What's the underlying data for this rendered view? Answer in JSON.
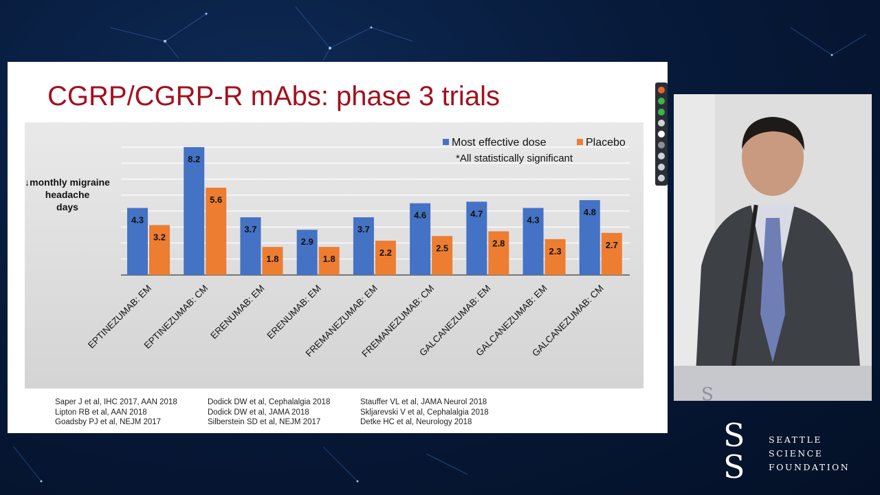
{
  "slide": {
    "title": "CGRP/CGRP-R mAbs: phase 3 trials",
    "references": [
      [
        "Saper J et al, IHC 2017, AAN 2018",
        "Lipton RB et al, AAN 2018",
        "Goadsby PJ et al, NEJM 2017"
      ],
      [
        "Dodick DW et al, Cephalalgia 2018",
        "Dodick DW et al, JAMA 2018",
        "Silberstein SD et al, NEJM 2017"
      ],
      [
        "Stauffer VL et al, JAMA Neurol 2018",
        "Skljarevski V et al, Cephalalgia 2018",
        "Detke HC et al, Neurology 2018"
      ]
    ]
  },
  "chart_data": {
    "type": "bar",
    "ylabel": "↓monthly migraine headache days",
    "annotation": "*All statistically significant",
    "legend_position": "top-right",
    "grid": true,
    "ylim": [
      0,
      8.2
    ],
    "categories": [
      "EPTINEZUMAB: EM",
      "EPTINEZUMAB: CM",
      "ERENUMAB: EM",
      "ERENUMAB: EM",
      "FREMANEZUMAB: EM",
      "FREMANEZUMAB: CM",
      "GALCANEZUMAB: EM",
      "GALCANEZUMAB: EM",
      "GALCANEZUMAB: CM"
    ],
    "series": [
      {
        "name": "Most effective dose",
        "color": "#4472c4",
        "values": [
          4.3,
          8.2,
          3.7,
          2.9,
          3.7,
          4.6,
          4.7,
          4.3,
          4.8
        ]
      },
      {
        "name": "Placebo",
        "color": "#ed7d31",
        "values": [
          3.2,
          5.6,
          1.8,
          1.8,
          2.2,
          2.5,
          2.8,
          2.3,
          2.7
        ]
      }
    ]
  },
  "branding": {
    "logo_lines": [
      "SEATTLE",
      "SCIENCE",
      "FOUNDATION"
    ]
  }
}
